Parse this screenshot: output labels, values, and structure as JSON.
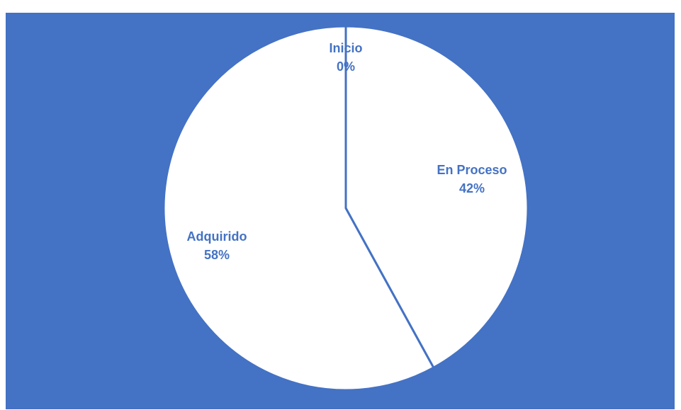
{
  "chart_data": {
    "type": "pie",
    "title": "",
    "colors": {
      "background": "#4472c4",
      "slice_fill": "#ffffff",
      "slice_border": "#4472c4",
      "label": "#4472c4"
    },
    "slices": [
      {
        "label": "Inicio",
        "value": 0,
        "percent_label": "0%"
      },
      {
        "label": "En Proceso",
        "value": 42,
        "percent_label": "42%"
      },
      {
        "label": "Adquirido",
        "value": 58,
        "percent_label": "58%"
      }
    ]
  }
}
